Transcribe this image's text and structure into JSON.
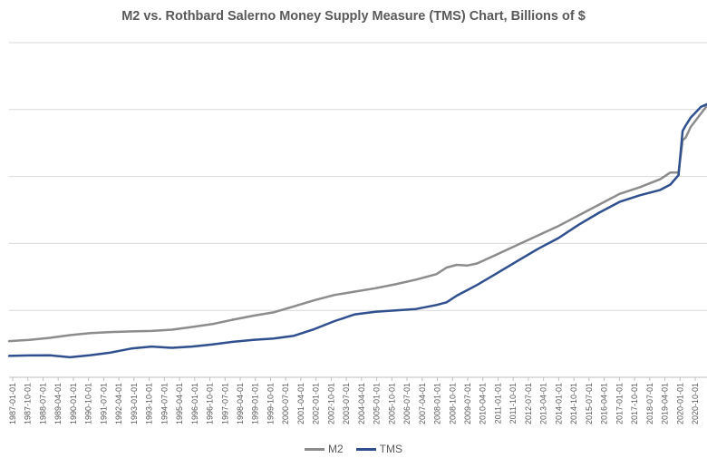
{
  "chart_data": {
    "type": "line",
    "title": "M2 vs. Rothbard Salerno Money Supply Measure (TMS) Chart, Billions of $",
    "xlabel": "",
    "ylabel": "",
    "grid": true,
    "legend_position": "bottom",
    "x_tick_labels": [
      "1987-01-01",
      "1987-10-01",
      "1988-07-01",
      "1989-04-01",
      "1990-01-01",
      "1990-10-01",
      "1991-07-01",
      "1992-04-01",
      "1993-01-01",
      "1993-10-01",
      "1994-07-01",
      "1995-04-01",
      "1996-01-01",
      "1996-10-01",
      "1997-07-01",
      "1998-04-01",
      "1999-01-01",
      "1999-10-01",
      "2000-07-01",
      "2001-04-01",
      "2002-01-01",
      "2002-10-01",
      "2003-07-01",
      "2004-04-01",
      "2005-01-01",
      "2005-10-01",
      "2006-07-01",
      "2007-04-01",
      "2008-01-01",
      "2008-10-01",
      "2009-07-01",
      "2010-04-01",
      "2011-01-01",
      "2011-10-01",
      "2012-07-01",
      "2013-04-01",
      "2014-01-01",
      "2014-10-01",
      "2015-07-01",
      "2016-04-01",
      "2017-01-01",
      "2017-10-01",
      "2018-07-01",
      "2019-04-01",
      "2020-01-01",
      "2020-10-01"
    ],
    "x": [
      1987.0,
      1988.0,
      1989.0,
      1990.0,
      1991.0,
      1992.0,
      1993.0,
      1994.0,
      1995.0,
      1996.0,
      1997.0,
      1998.0,
      1999.0,
      2000.0,
      2001.0,
      2002.0,
      2003.0,
      2004.0,
      2005.0,
      2006.0,
      2007.0,
      2008.0,
      2008.5,
      2009.0,
      2009.5,
      2010.0,
      2011.0,
      2012.0,
      2013.0,
      2014.0,
      2015.0,
      2016.0,
      2017.0,
      2018.0,
      2019.0,
      2019.5,
      2019.9,
      2020.1,
      2020.25,
      2020.5,
      2021.0,
      2021.3
    ],
    "xlim": [
      1987.0,
      2021.3
    ],
    "ylim": [
      0,
      25000
    ],
    "series": [
      {
        "name": "M2",
        "color": "#8c8c8c",
        "values": [
          2700,
          2800,
          2950,
          3150,
          3300,
          3380,
          3430,
          3460,
          3560,
          3760,
          3980,
          4300,
          4600,
          4850,
          5300,
          5750,
          6150,
          6400,
          6650,
          6950,
          7300,
          7700,
          8200,
          8400,
          8350,
          8500,
          9200,
          9900,
          10600,
          11300,
          12100,
          12900,
          13700,
          14200,
          14800,
          15300,
          15300,
          17700,
          17900,
          18700,
          19700,
          20300
        ]
      },
      {
        "name": "TMS",
        "color": "#2f4f8f",
        "values": [
          1600,
          1630,
          1640,
          1500,
          1650,
          1850,
          2150,
          2300,
          2200,
          2300,
          2450,
          2650,
          2800,
          2900,
          3100,
          3600,
          4200,
          4700,
          4900,
          5000,
          5100,
          5400,
          5600,
          6100,
          6500,
          6900,
          7800,
          8700,
          9600,
          10400,
          11400,
          12300,
          13100,
          13600,
          14000,
          14400,
          15100,
          18400,
          18800,
          19400,
          20200,
          20400
        ]
      }
    ]
  },
  "legend": {
    "items": [
      {
        "label": "M2",
        "color": "#8c8c8c"
      },
      {
        "label": "TMS",
        "color": "#2f4f8f"
      }
    ]
  }
}
